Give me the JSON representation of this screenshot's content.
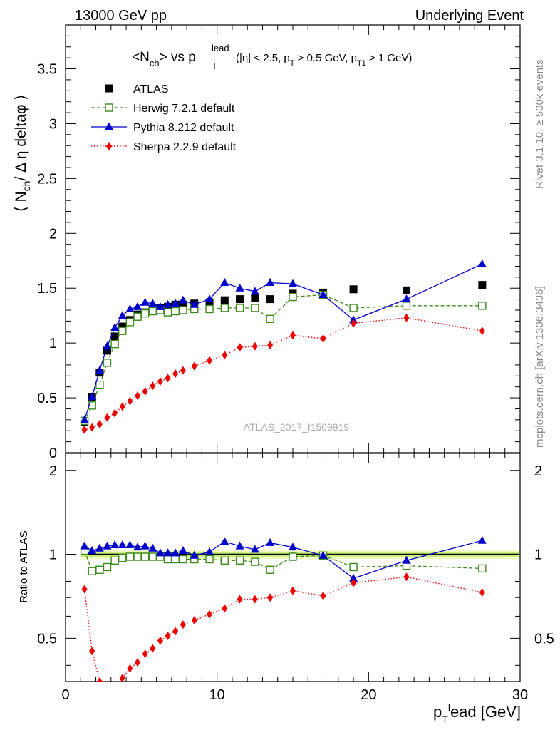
{
  "header": {
    "left": "13000 GeV pp",
    "right": "Underlying Event"
  },
  "side_labels": {
    "rivet": "Rivet 3.1.10, ≥ 500k events",
    "mcplots": "mcplots.cern.ch [arXiv:1306.3436]"
  },
  "watermark": "ATLAS_2017_I1509919",
  "plot_title": {
    "main": "<N",
    "sub_ch": "ch",
    "vs": "> vs p",
    "sub_T": "T",
    "sup_lead": "lead",
    "cuts": "(|η| < 2.5, p",
    "cuts2": " > 0.5 GeV, p",
    "cuts3": " > 1 GeV)",
    "cut_sub_T": "T",
    "cut_sub_T1": "T1"
  },
  "colors": {
    "atlas": "#000000",
    "herwig": "#3a8a1a",
    "pythia": "#0000cc",
    "sherpa": "#ee0000",
    "band_inner": "#c8f07a",
    "band_outer": "#f2fcc8"
  },
  "chart_data": [
    {
      "type": "scatter",
      "title": "<Nch> vs pT lead (|η| < 2.5, pT > 0.5 GeV, pT1 > 1 GeV)",
      "ylabel": "⟨ N_ch / Δη deltaφ ⟩",
      "ylabel_parts": {
        "pre": "⟨ N",
        "sub": "ch",
        "post": "/ Δ η deltaφ ⟩"
      },
      "xlim": [
        0,
        30
      ],
      "ylim": [
        0,
        3.9
      ],
      "yticks": [
        "0",
        "0.5",
        "1",
        "1.5",
        "2",
        "2.5",
        "3",
        "3.5"
      ],
      "ytick_values": [
        0,
        0.5,
        1,
        1.5,
        2,
        2.5,
        3,
        3.5
      ],
      "legend_position": "top-left",
      "series": [
        {
          "name": "ATLAS",
          "marker": "square",
          "line": "none",
          "x": [
            1.25,
            1.75,
            2.25,
            2.75,
            3.25,
            3.75,
            4.25,
            4.75,
            5.25,
            5.75,
            6.25,
            6.75,
            7.25,
            7.75,
            8.5,
            9.5,
            10.5,
            11.5,
            12.5,
            13.5,
            15,
            17,
            19,
            22.5,
            27.5
          ],
          "y": [
            0.28,
            0.51,
            0.73,
            0.93,
            1.06,
            1.15,
            1.21,
            1.26,
            1.28,
            1.31,
            1.32,
            1.33,
            1.35,
            1.35,
            1.36,
            1.37,
            1.39,
            1.4,
            1.41,
            1.4,
            1.45,
            1.46,
            1.49,
            1.48,
            1.53
          ]
        },
        {
          "name": "Herwig 7.2.1 default",
          "marker": "open-square",
          "line": "dashed",
          "x": [
            1.25,
            1.75,
            2.25,
            2.75,
            3.25,
            3.75,
            4.25,
            4.75,
            5.25,
            5.75,
            6.25,
            6.75,
            7.25,
            7.75,
            8.5,
            9.5,
            10.5,
            11.5,
            12.5,
            13.5,
            15,
            17,
            19,
            22.5,
            27.5
          ],
          "y": [
            0.29,
            0.43,
            0.62,
            0.82,
            0.99,
            1.11,
            1.19,
            1.24,
            1.27,
            1.29,
            1.3,
            1.28,
            1.29,
            1.3,
            1.31,
            1.31,
            1.32,
            1.32,
            1.32,
            1.22,
            1.42,
            1.44,
            1.32,
            1.34,
            1.34
          ]
        },
        {
          "name": "Pythia 8.212 default",
          "marker": "triangle",
          "line": "solid",
          "x": [
            1.25,
            1.75,
            2.25,
            2.75,
            3.25,
            3.75,
            4.25,
            4.75,
            5.25,
            5.75,
            6.25,
            6.75,
            7.25,
            7.75,
            8.5,
            9.5,
            10.5,
            11.5,
            12.5,
            13.5,
            15,
            17,
            19,
            22.5,
            27.5
          ],
          "y": [
            0.3,
            0.51,
            0.75,
            0.97,
            1.14,
            1.25,
            1.31,
            1.33,
            1.37,
            1.36,
            1.33,
            1.35,
            1.36,
            1.39,
            1.35,
            1.4,
            1.55,
            1.5,
            1.47,
            1.55,
            1.54,
            1.44,
            1.21,
            1.4,
            1.72
          ]
        },
        {
          "name": "Sherpa 2.2.9 default",
          "marker": "diamond",
          "line": "dotted",
          "x": [
            1.25,
            1.75,
            2.25,
            2.75,
            3.25,
            3.75,
            4.25,
            4.75,
            5.25,
            5.75,
            6.25,
            6.75,
            7.25,
            7.75,
            8.5,
            9.5,
            10.5,
            11.5,
            12.5,
            13.5,
            15,
            17,
            19,
            22.5,
            27.5
          ],
          "y": [
            0.21,
            0.23,
            0.26,
            0.32,
            0.36,
            0.42,
            0.47,
            0.52,
            0.56,
            0.61,
            0.65,
            0.68,
            0.72,
            0.75,
            0.79,
            0.84,
            0.89,
            0.96,
            0.97,
            0.98,
            1.07,
            1.04,
            1.18,
            1.23,
            1.11
          ]
        }
      ]
    },
    {
      "type": "scatter",
      "ylabel": "Ratio to ATLAS",
      "xlabel": "p_T lead [GeV]",
      "xlabel_parts": {
        "pre": "p",
        "sub": "T",
        "sup": "l",
        "post": "ead [GeV]"
      },
      "xlim": [
        0,
        30
      ],
      "ylim": [
        0.35,
        2.3
      ],
      "xticks": [
        "0",
        "10",
        "20",
        "30"
      ],
      "xtick_values": [
        0,
        10,
        20,
        30
      ],
      "yticks": [
        "0.5",
        "1",
        "2"
      ],
      "ytick_values": [
        0.5,
        1,
        2
      ],
      "series": [
        {
          "name": "Herwig 7.2.1 default",
          "marker": "open-square",
          "line": "dashed",
          "x": [
            1.25,
            1.75,
            2.25,
            2.75,
            3.25,
            3.75,
            4.25,
            4.75,
            5.25,
            5.75,
            6.25,
            6.75,
            7.25,
            7.75,
            8.5,
            9.5,
            10.5,
            11.5,
            12.5,
            13.5,
            15,
            17,
            19,
            22.5,
            27.5
          ],
          "y": [
            1.03,
            0.87,
            0.88,
            0.9,
            0.95,
            0.97,
            0.98,
            0.98,
            0.98,
            0.98,
            0.98,
            0.96,
            0.96,
            0.96,
            0.96,
            0.96,
            0.95,
            0.95,
            0.94,
            0.88,
            0.98,
            0.99,
            0.9,
            0.91,
            0.89
          ]
        },
        {
          "name": "Pythia 8.212 default",
          "marker": "triangle",
          "line": "solid",
          "x": [
            1.25,
            1.75,
            2.25,
            2.75,
            3.25,
            3.75,
            4.25,
            4.75,
            5.25,
            5.75,
            6.25,
            6.75,
            7.25,
            7.75,
            8.5,
            9.5,
            10.5,
            11.5,
            12.5,
            13.5,
            15,
            17,
            19,
            22.5,
            27.5
          ],
          "y": [
            1.07,
            1.03,
            1.05,
            1.07,
            1.08,
            1.08,
            1.08,
            1.06,
            1.07,
            1.05,
            1.01,
            1.01,
            1.01,
            1.03,
            0.99,
            1.02,
            1.11,
            1.07,
            1.04,
            1.1,
            1.06,
            0.99,
            0.82,
            0.95,
            1.12
          ]
        },
        {
          "name": "Sherpa 2.2.9 default",
          "marker": "diamond",
          "line": "dotted",
          "x": [
            1.25,
            1.75,
            2.25,
            2.75,
            3.25,
            3.75,
            4.25,
            4.75,
            5.25,
            5.75,
            6.25,
            6.75,
            7.25,
            7.75,
            8.5,
            9.5,
            10.5,
            11.5,
            12.5,
            13.5,
            15,
            17,
            19,
            22.5,
            27.5
          ],
          "y": [
            0.75,
            0.45,
            0.35,
            0.34,
            0.34,
            0.36,
            0.39,
            0.41,
            0.44,
            0.46,
            0.49,
            0.51,
            0.53,
            0.56,
            0.58,
            0.61,
            0.64,
            0.69,
            0.69,
            0.7,
            0.74,
            0.71,
            0.79,
            0.83,
            0.73
          ]
        }
      ]
    }
  ]
}
